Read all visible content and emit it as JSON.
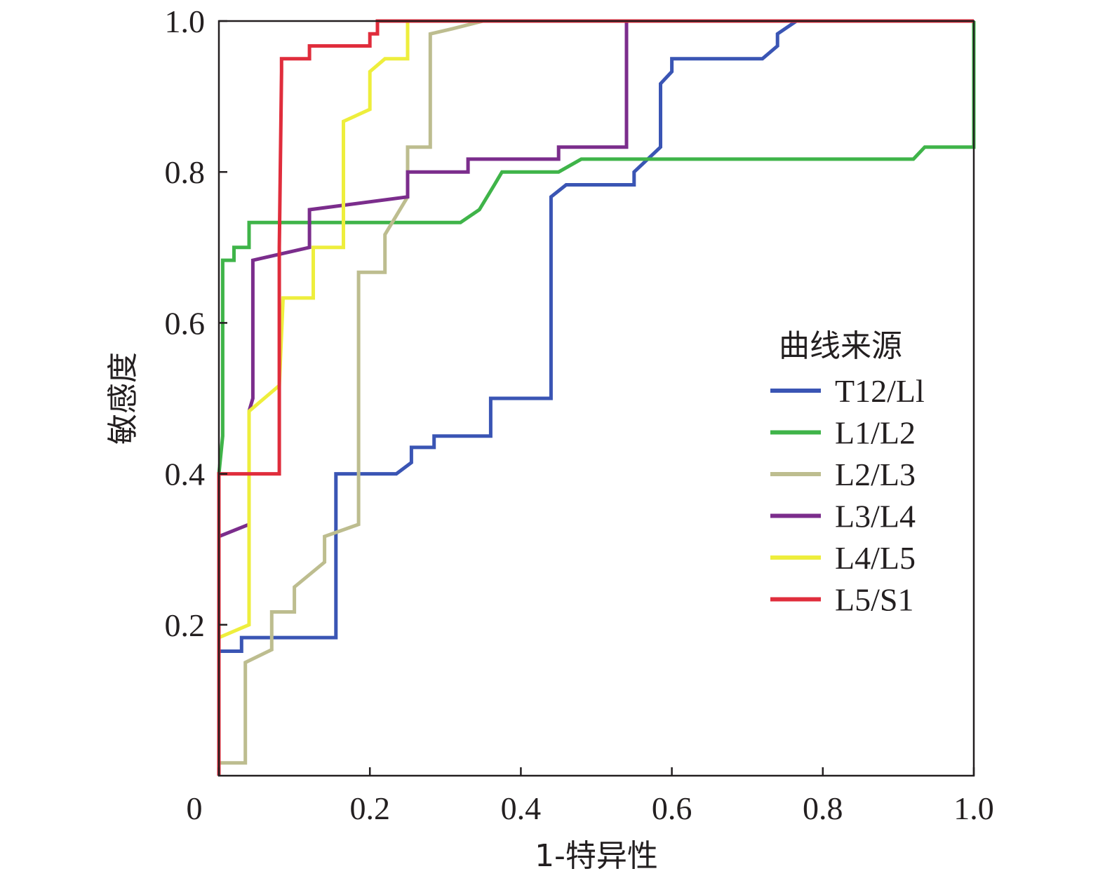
{
  "chart_data": {
    "type": "line",
    "title": "",
    "xlabel": "1-特异性",
    "ylabel": "敏感度",
    "xlim": [
      0,
      1
    ],
    "ylim": [
      0,
      1
    ],
    "x_ticks": [
      {
        "value": 0,
        "label": "0"
      },
      {
        "value": 0.2,
        "label": "0.2"
      },
      {
        "value": 0.4,
        "label": "0.4"
      },
      {
        "value": 0.6,
        "label": "0.6"
      },
      {
        "value": 0.8,
        "label": "0.8"
      },
      {
        "value": 1.0,
        "label": "1.0"
      }
    ],
    "y_ticks": [
      {
        "value": 0.2,
        "label": "0.2"
      },
      {
        "value": 0.4,
        "label": "0.4"
      },
      {
        "value": 0.6,
        "label": "0.6"
      },
      {
        "value": 0.8,
        "label": "0.8"
      },
      {
        "value": 1.0,
        "label": "1.0"
      }
    ],
    "grid": false,
    "legend": {
      "title": "曲线来源",
      "placement": "right-middle"
    },
    "series": [
      {
        "name": "T12/Ll",
        "color": "#3a55b4",
        "points": [
          [
            0,
            0
          ],
          [
            0,
            0.165
          ],
          [
            0.03,
            0.165
          ],
          [
            0.03,
            0.183
          ],
          [
            0.155,
            0.183
          ],
          [
            0.155,
            0.4
          ],
          [
            0.235,
            0.4
          ],
          [
            0.255,
            0.415
          ],
          [
            0.255,
            0.435
          ],
          [
            0.285,
            0.435
          ],
          [
            0.285,
            0.45
          ],
          [
            0.36,
            0.45
          ],
          [
            0.36,
            0.5
          ],
          [
            0.44,
            0.5
          ],
          [
            0.44,
            0.767
          ],
          [
            0.46,
            0.783
          ],
          [
            0.55,
            0.783
          ],
          [
            0.55,
            0.8
          ],
          [
            0.585,
            0.833
          ],
          [
            0.585,
            0.917
          ],
          [
            0.6,
            0.933
          ],
          [
            0.6,
            0.95
          ],
          [
            0.72,
            0.95
          ],
          [
            0.74,
            0.967
          ],
          [
            0.74,
            0.983
          ],
          [
            0.765,
            1.0
          ],
          [
            1.0,
            1.0
          ]
        ]
      },
      {
        "name": "L1/L2",
        "color": "#3fb449",
        "points": [
          [
            0,
            0
          ],
          [
            0,
            0.4
          ],
          [
            0.005,
            0.45
          ],
          [
            0.005,
            0.683
          ],
          [
            0.02,
            0.683
          ],
          [
            0.02,
            0.7
          ],
          [
            0.04,
            0.7
          ],
          [
            0.04,
            0.733
          ],
          [
            0.32,
            0.733
          ],
          [
            0.345,
            0.75
          ],
          [
            0.365,
            0.783
          ],
          [
            0.375,
            0.8
          ],
          [
            0.45,
            0.8
          ],
          [
            0.48,
            0.817
          ],
          [
            0.92,
            0.817
          ],
          [
            0.935,
            0.833
          ],
          [
            1.0,
            0.833
          ],
          [
            1.0,
            1.0
          ]
        ]
      },
      {
        "name": "L2/L3",
        "color": "#bdbd8f",
        "points": [
          [
            0,
            0
          ],
          [
            0,
            0.017
          ],
          [
            0.035,
            0.017
          ],
          [
            0.035,
            0.15
          ],
          [
            0.07,
            0.167
          ],
          [
            0.07,
            0.217
          ],
          [
            0.1,
            0.217
          ],
          [
            0.1,
            0.25
          ],
          [
            0.14,
            0.283
          ],
          [
            0.14,
            0.317
          ],
          [
            0.185,
            0.333
          ],
          [
            0.185,
            0.667
          ],
          [
            0.22,
            0.667
          ],
          [
            0.22,
            0.717
          ],
          [
            0.25,
            0.767
          ],
          [
            0.25,
            0.833
          ],
          [
            0.28,
            0.833
          ],
          [
            0.28,
            0.983
          ],
          [
            0.31,
            0.99
          ],
          [
            0.35,
            1.0
          ],
          [
            1.0,
            1.0
          ]
        ]
      },
      {
        "name": "L3/L4",
        "color": "#7b2d8c",
        "points": [
          [
            0,
            0
          ],
          [
            0,
            0.317
          ],
          [
            0.04,
            0.333
          ],
          [
            0.04,
            0.483
          ],
          [
            0.045,
            0.5
          ],
          [
            0.045,
            0.683
          ],
          [
            0.12,
            0.7
          ],
          [
            0.12,
            0.75
          ],
          [
            0.25,
            0.767
          ],
          [
            0.25,
            0.8
          ],
          [
            0.33,
            0.8
          ],
          [
            0.33,
            0.817
          ],
          [
            0.45,
            0.817
          ],
          [
            0.45,
            0.833
          ],
          [
            0.54,
            0.833
          ],
          [
            0.54,
            1.0
          ],
          [
            1.0,
            1.0
          ]
        ]
      },
      {
        "name": "L4/L5",
        "color": "#eeee3c",
        "points": [
          [
            0,
            0
          ],
          [
            0,
            0.183
          ],
          [
            0.04,
            0.2
          ],
          [
            0.04,
            0.483
          ],
          [
            0.08,
            0.517
          ],
          [
            0.085,
            0.633
          ],
          [
            0.125,
            0.633
          ],
          [
            0.125,
            0.7
          ],
          [
            0.165,
            0.7
          ],
          [
            0.165,
            0.867
          ],
          [
            0.2,
            0.883
          ],
          [
            0.2,
            0.933
          ],
          [
            0.22,
            0.95
          ],
          [
            0.25,
            0.95
          ],
          [
            0.25,
            1.0
          ],
          [
            1.0,
            1.0
          ]
        ]
      },
      {
        "name": "L5/S1",
        "color": "#e02d3c",
        "points": [
          [
            0,
            0
          ],
          [
            0,
            0.4
          ],
          [
            0.08,
            0.4
          ],
          [
            0.08,
            0.7
          ],
          [
            0.083,
            0.933
          ],
          [
            0.083,
            0.95
          ],
          [
            0.1,
            0.95
          ],
          [
            0.1,
            0.95
          ],
          [
            0.12,
            0.95
          ],
          [
            0.12,
            0.967
          ],
          [
            0.2,
            0.967
          ],
          [
            0.2,
            0.983
          ],
          [
            0.21,
            0.983
          ],
          [
            0.21,
            1.0
          ],
          [
            1.0,
            1.0
          ]
        ]
      }
    ]
  }
}
